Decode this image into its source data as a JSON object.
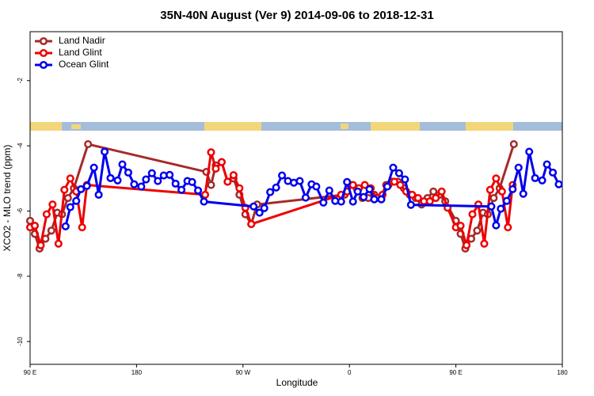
{
  "chart_data": {
    "type": "line",
    "title": "35N-40N August (Ver 9)   2014-09-06 to 2018-12-31",
    "x_label": "Longitude",
    "y_label": "XCO2 - MLO trend (ppm)",
    "xlim": [
      90,
      540
    ],
    "ylim": [
      -10.7,
      -0.5
    ],
    "xticks": [
      {
        "value": 90,
        "label": "90 E"
      },
      180,
      {
        "value": 270,
        "label": "90 W"
      },
      {
        "value": 360,
        "label": "0"
      },
      {
        "value": 450,
        "label": "90 E"
      },
      {
        "value": 540,
        "label": "180"
      }
    ],
    "yticks": [
      -10,
      -8,
      -6,
      -4,
      -2
    ],
    "legend": "top-left",
    "series": [
      {
        "name": "Land Nadir",
        "color": "#a52a2a",
        "x": [
          90,
          94,
          98,
          103,
          108,
          113,
          117,
          122,
          127,
          139,
          239,
          243,
          247,
          252,
          257,
          262,
          267,
          272,
          277,
          282,
          356,
          361,
          366,
          371,
          376,
          381,
          386,
          391,
          396,
          401,
          406,
          411,
          416,
          421,
          426,
          431,
          436,
          441,
          450,
          454,
          458,
          463,
          468,
          473,
          477,
          482,
          487,
          499
        ],
        "values": [
          -6.3,
          -6.7,
          -7.15,
          -6.85,
          -6.6,
          -6.05,
          -6.1,
          -5.6,
          -5.3,
          -3.95,
          -4.8,
          -5.2,
          -4.6,
          -4.5,
          -5.1,
          -5.0,
          -5.5,
          -6.1,
          -6.4,
          -5.8,
          -5.5,
          -5.2,
          -5.3,
          -5.6,
          -5.6,
          -5.5,
          -5.6,
          -5.2,
          -5.1,
          -5.1,
          -5.3,
          -5.5,
          -5.6,
          -5.8,
          -5.6,
          -5.4,
          -5.5,
          -5.7,
          -6.3,
          -6.7,
          -7.15,
          -6.85,
          -6.6,
          -6.05,
          -6.1,
          -5.6,
          -5.3,
          -3.95
        ]
      },
      {
        "name": "Land Glint",
        "color": "#ee0000",
        "x": [
          90,
          94,
          99,
          104,
          109,
          114,
          119,
          124,
          129,
          134,
          138,
          238,
          243,
          247,
          252,
          257,
          262,
          267,
          272,
          277,
          353,
          358,
          363,
          368,
          373,
          378,
          383,
          388,
          393,
          398,
          403,
          408,
          413,
          418,
          423,
          428,
          433,
          438,
          443,
          450,
          454,
          459,
          464,
          469,
          474,
          479,
          484,
          489,
          494,
          498
        ],
        "values": [
          -6.5,
          -6.45,
          -7.05,
          -6.1,
          -5.8,
          -7.0,
          -5.35,
          -5.0,
          -5.4,
          -6.5,
          -5.2,
          -5.5,
          -4.2,
          -4.7,
          -4.5,
          -5.1,
          -4.9,
          -5.3,
          -5.9,
          -6.4,
          -5.5,
          -5.4,
          -5.2,
          -5.3,
          -5.2,
          -5.3,
          -5.6,
          -5.5,
          -5.2,
          -5.1,
          -5.2,
          -5.4,
          -5.5,
          -5.6,
          -5.7,
          -5.7,
          -5.6,
          -5.4,
          -5.9,
          -6.5,
          -6.45,
          -7.05,
          -6.1,
          -5.8,
          -7.0,
          -5.35,
          -5.0,
          -5.4,
          -6.5,
          -5.2
        ]
      },
      {
        "name": "Ocean Glint",
        "color": "#0000ee",
        "x": [
          120,
          124,
          129,
          133,
          138,
          144,
          148,
          153,
          158,
          164,
          168,
          173,
          178,
          184,
          188,
          193,
          198,
          203,
          208,
          213,
          218,
          223,
          227,
          232,
          237,
          279,
          284,
          288,
          293,
          298,
          303,
          308,
          313,
          318,
          323,
          328,
          332,
          338,
          343,
          348,
          353,
          358,
          363,
          367,
          372,
          377,
          381,
          387,
          392,
          397,
          402,
          407,
          412,
          480,
          484,
          488,
          493,
          498,
          503,
          507,
          512,
          517,
          523,
          527,
          532,
          537
        ],
        "values": [
          -6.47,
          -5.88,
          -5.69,
          -5.33,
          -5.23,
          -4.67,
          -5.5,
          -4.18,
          -4.99,
          -5.06,
          -4.57,
          -4.82,
          -5.18,
          -5.25,
          -5.03,
          -4.84,
          -5.08,
          -4.91,
          -4.89,
          -5.16,
          -5.35,
          -5.08,
          -5.11,
          -5.37,
          -5.71,
          -5.86,
          -6.05,
          -5.91,
          -5.42,
          -5.28,
          -4.91,
          -5.08,
          -5.13,
          -5.08,
          -5.59,
          -5.18,
          -5.25,
          -5.74,
          -5.37,
          -5.69,
          -5.71,
          -5.11,
          -5.71,
          -5.4,
          -5.57,
          -5.33,
          -5.64,
          -5.64,
          -5.25,
          -4.67,
          -4.84,
          -5.03,
          -5.81,
          -5.86,
          -6.44,
          -5.93,
          -5.69,
          -5.33,
          -4.67,
          -5.47,
          -4.18,
          -4.99,
          -5.06,
          -4.57,
          -4.82,
          -5.18
        ]
      }
    ]
  }
}
